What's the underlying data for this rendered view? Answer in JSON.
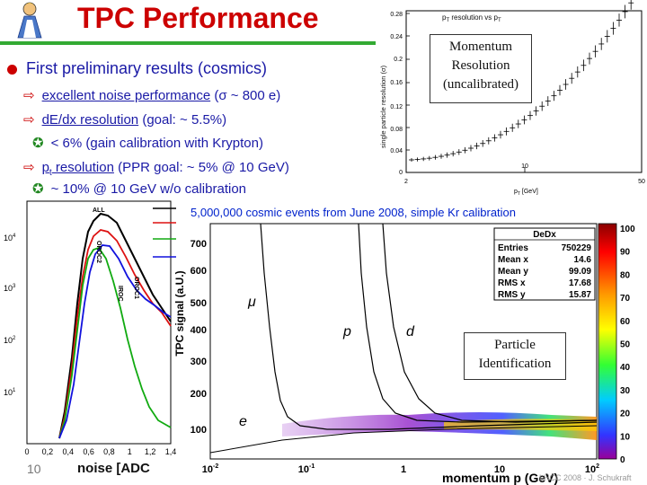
{
  "header": {
    "title": "TPC Performance"
  },
  "bullets": {
    "main": "First preliminary results (cosmics)",
    "noise_link": "excellent noise performance",
    "noise_value": "(σ ~ 800 e)",
    "dedx_link": "dE/dx resolution",
    "dedx_goal": "(goal: ~ 5.5%)",
    "dedx_result": "< 6% (gain calibration with Krypton)",
    "pt_link_a": "p",
    "pt_link_b": "t",
    "pt_link_c": " resolution",
    "pt_goal": "(PPR goal: ~ 5% @ 10 GeV)",
    "pt_result": "~ 10% @ 10 GeV w/o calibration"
  },
  "momentum_plot": {
    "title": "p",
    "title_sub": "T",
    "title_mid": " resolution vs p",
    "title_sub2": "T",
    "ylabel": "single particle resolution (σ)",
    "xlabel": "p",
    "xlabel_sub": "T",
    "xlabel_unit": " [GeV]",
    "yticks": [
      "0",
      "0.04",
      "0.08",
      "0.12",
      "0.16",
      "0.2",
      "0.24",
      "0.28"
    ],
    "xticks": [
      "2",
      "10",
      "50"
    ],
    "box_lines": [
      "Momentum",
      "Resolution",
      "(uncalibrated)"
    ]
  },
  "noise_plot": {
    "xlabel": "noise [ADC",
    "xticks": [
      "0",
      "0,2",
      "0,4",
      "0,6",
      "0,8",
      "1",
      "1,2",
      "1,4"
    ],
    "yticks": [
      "10",
      "10",
      "10",
      "10"
    ],
    "yexps": [
      "4",
      "3",
      "2",
      "1"
    ],
    "labels": {
      "all": "ALL",
      "oroc2": "OROC2",
      "iroc": "IROC",
      "oroc1": "OROC1"
    },
    "colors": {
      "black": "#000000",
      "red": "#dd1111",
      "green": "#11aa11",
      "blue": "#1111dd"
    }
  },
  "pid_plot": {
    "caption": "5,000,000 cosmic events from June 2008, simple Kr calibration",
    "ylabel": "TPC signal (a.U.)",
    "xlabel": "momentum p (GeV)",
    "yticks": [
      "100",
      "200",
      "300",
      "400",
      "500",
      "600",
      "700"
    ],
    "xticks": [
      "10",
      "10",
      "1",
      "10",
      "10"
    ],
    "xexps": [
      "-2",
      "-1",
      "",
      "",
      "2"
    ],
    "curve_labels": {
      "mu": "μ",
      "p": "p",
      "d": "d",
      "e": "e"
    },
    "box_lines": [
      "Particle",
      "Identification"
    ],
    "colorbar_ticks": [
      "100",
      "90",
      "80",
      "70",
      "60",
      "50",
      "40",
      "30",
      "20",
      "10",
      "0"
    ],
    "stats": {
      "title": "DeDx",
      "rows": [
        {
          "label": "Entries",
          "value": "750229"
        },
        {
          "label": "Mean x",
          "value": "14.6"
        },
        {
          "label": "Mean y",
          "value": "99.09"
        },
        {
          "label": "RMS x",
          "value": "17.68"
        },
        {
          "label": "RMS y",
          "value": "15.87"
        }
      ]
    }
  },
  "footer": {
    "slide_number": "10",
    "author": "LHCC 2008 · J. Schukraft"
  }
}
